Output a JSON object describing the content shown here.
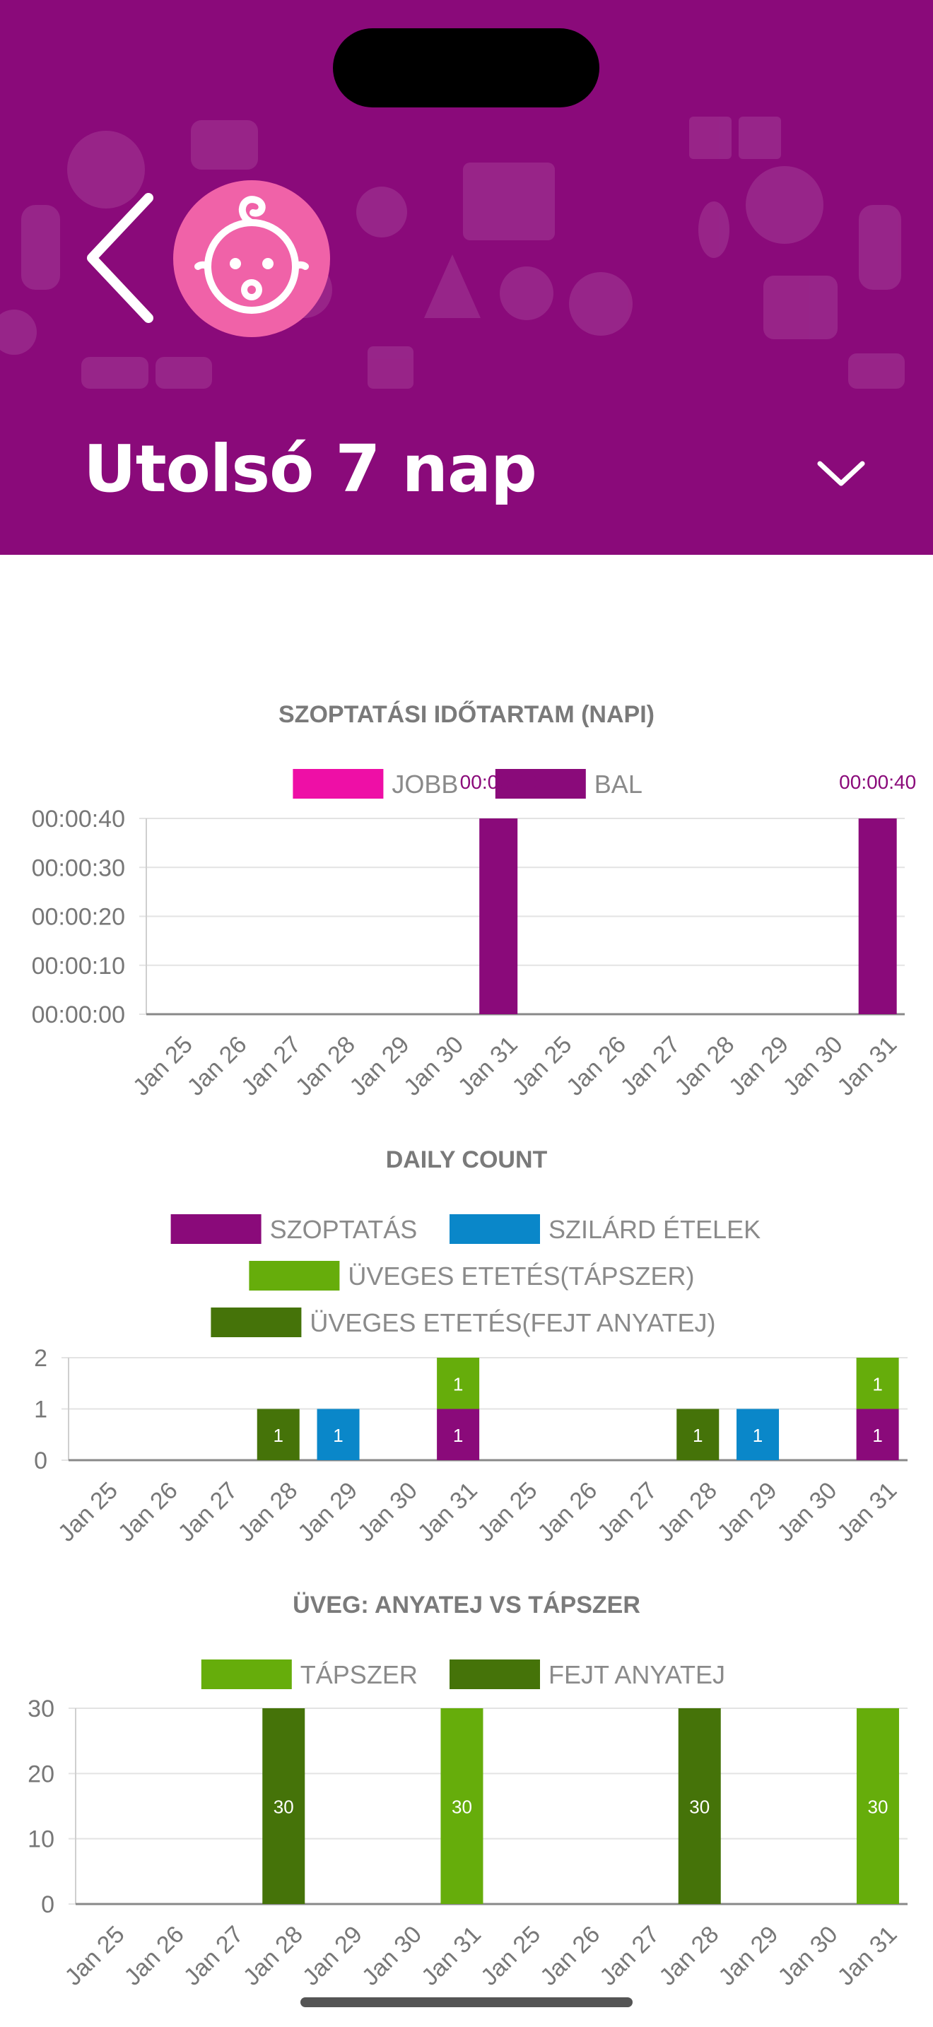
{
  "header": {
    "title": "Utolsó 7 nap",
    "back_icon": "chevron-left-icon",
    "avatar_icon": "baby-face-icon",
    "dropdown_icon": "chevron-down-icon",
    "background_color": "#8a0a7a",
    "avatar_color": "#f062a8"
  },
  "chart_data": [
    {
      "type": "bar",
      "title": "SZOPTATÁSI IDŐTARTAM (NAPI)",
      "categories": [
        "Jan 25",
        "Jan 26",
        "Jan 27",
        "Jan 28",
        "Jan 29",
        "Jan 30",
        "Jan 31",
        "Jan 25",
        "Jan 26",
        "Jan 27",
        "Jan 28",
        "Jan 29",
        "Jan 30",
        "Jan 31"
      ],
      "ytick_labels": [
        "00:00:00",
        "00:00:10",
        "00:00:20",
        "00:00:30",
        "00:00:40"
      ],
      "ylim": [
        0,
        40
      ],
      "y_unit": "seconds",
      "grid": true,
      "legend": "top-center",
      "series": [
        {
          "name": "JOBB",
          "color": "#ee0fa6",
          "values": [
            0,
            0,
            0,
            0,
            0,
            0,
            0,
            0,
            0,
            0,
            0,
            0,
            0,
            0
          ]
        },
        {
          "name": "BAL",
          "color": "#8a0a7a",
          "values": [
            0,
            0,
            0,
            0,
            0,
            0,
            40,
            0,
            0,
            0,
            0,
            0,
            0,
            40
          ]
        }
      ],
      "data_labels": [
        "00:00:40",
        "00:00:40"
      ]
    },
    {
      "type": "bar",
      "title": "DAILY COUNT",
      "stacked": true,
      "categories": [
        "Jan 25",
        "Jan 26",
        "Jan 27",
        "Jan 28",
        "Jan 29",
        "Jan 30",
        "Jan 31",
        "Jan 25",
        "Jan 26",
        "Jan 27",
        "Jan 28",
        "Jan 29",
        "Jan 30",
        "Jan 31"
      ],
      "ylim": [
        0,
        2
      ],
      "yticks": [
        0,
        1,
        2
      ],
      "grid": true,
      "legend": "top-center",
      "series": [
        {
          "name": "SZOPTATÁS",
          "color": "#8a0a7a",
          "values": [
            0,
            0,
            0,
            0,
            0,
            0,
            1,
            0,
            0,
            0,
            0,
            0,
            0,
            1
          ]
        },
        {
          "name": "SZILÁRD ÉTELEK",
          "color": "#0a87c9",
          "values": [
            0,
            0,
            0,
            0,
            1,
            0,
            0,
            0,
            0,
            0,
            0,
            1,
            0,
            0
          ]
        },
        {
          "name": "ÜVEGES ETETÉS(TÁPSZER)",
          "color": "#66ad0b",
          "values": [
            0,
            0,
            0,
            0,
            0,
            0,
            1,
            0,
            0,
            0,
            0,
            0,
            0,
            1
          ]
        },
        {
          "name": "ÜVEGES ETETÉS(FEJT ANYATEJ)",
          "color": "#457309",
          "values": [
            0,
            0,
            0,
            1,
            0,
            0,
            0,
            0,
            0,
            0,
            1,
            0,
            0,
            0
          ]
        }
      ]
    },
    {
      "type": "bar",
      "title": "ÜVEG: ANYATEJ VS TÁPSZER",
      "categories": [
        "Jan 25",
        "Jan 26",
        "Jan 27",
        "Jan 28",
        "Jan 29",
        "Jan 30",
        "Jan 31",
        "Jan 25",
        "Jan 26",
        "Jan 27",
        "Jan 28",
        "Jan 29",
        "Jan 30",
        "Jan 31"
      ],
      "ylim": [
        0,
        30
      ],
      "yticks": [
        0,
        10,
        20,
        30
      ],
      "grid": true,
      "legend": "top-center",
      "series": [
        {
          "name": "TÁPSZER",
          "color": "#66ad0b",
          "values": [
            0,
            0,
            0,
            0,
            0,
            0,
            30,
            0,
            0,
            0,
            0,
            0,
            0,
            30
          ]
        },
        {
          "name": "FEJT ANYATEJ",
          "color": "#457309",
          "values": [
            0,
            0,
            0,
            30,
            0,
            0,
            0,
            0,
            0,
            0,
            30,
            0,
            0,
            0
          ]
        }
      ]
    }
  ]
}
